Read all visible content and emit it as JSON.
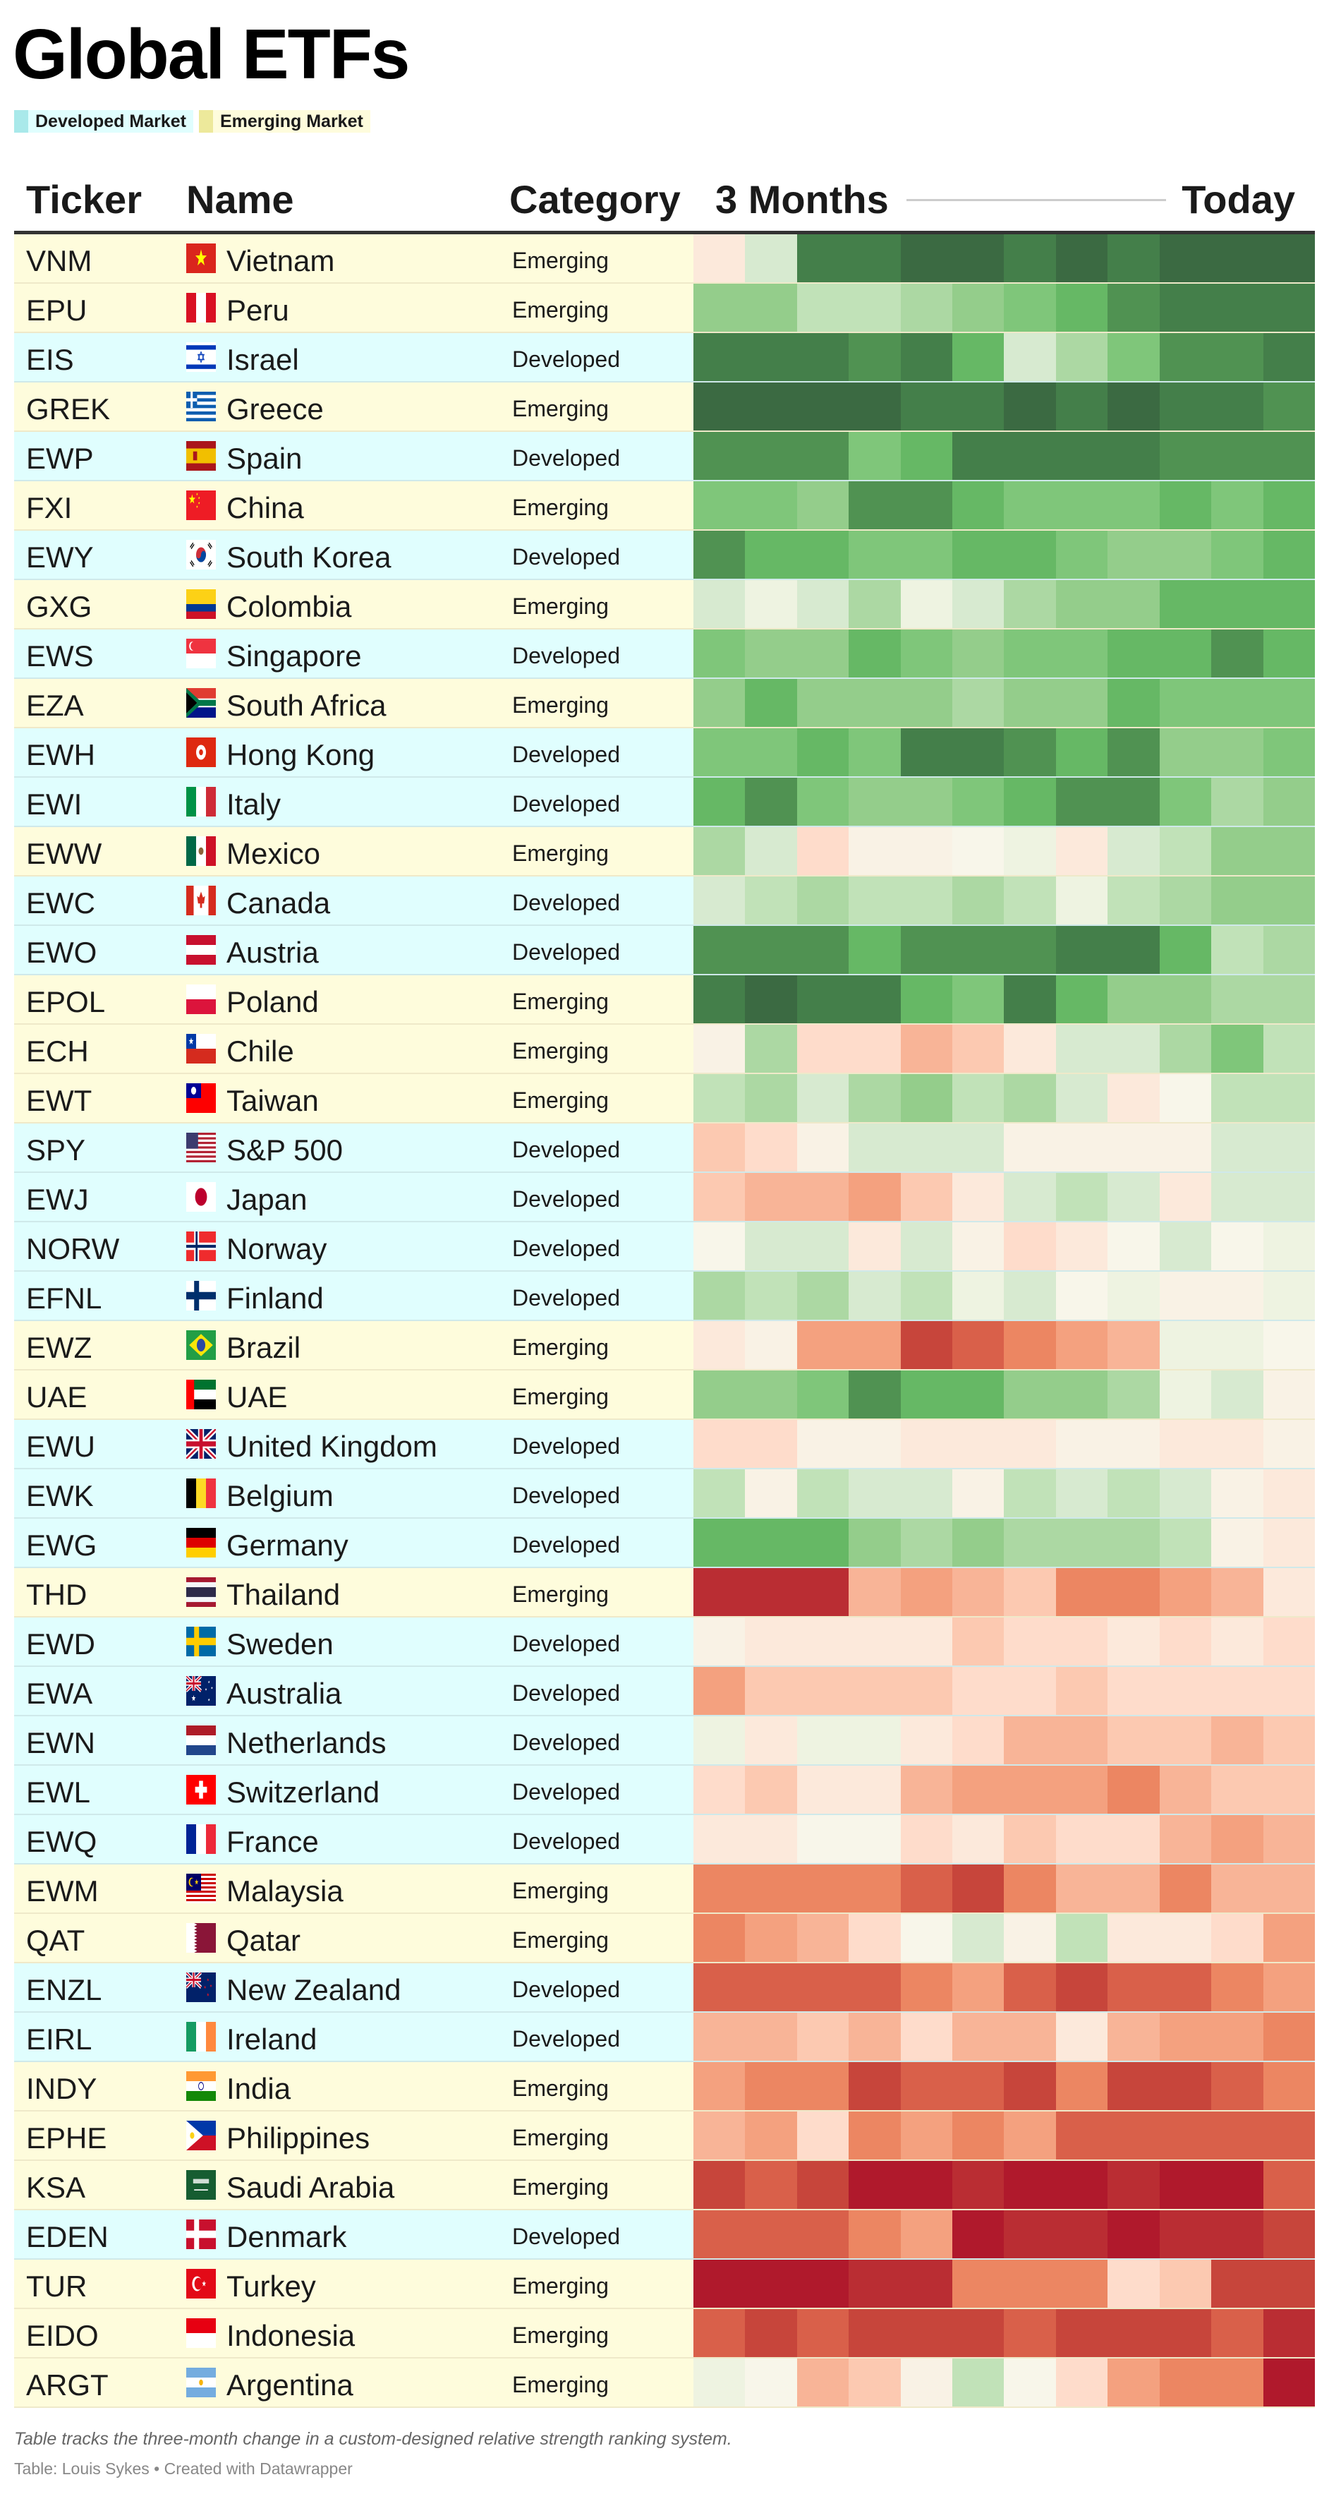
{
  "title": "Global ETFs",
  "legend": [
    {
      "label": "Developed Market",
      "color": "#a9e9ea"
    },
    {
      "label": "Emerging Market",
      "color": "#ede99b"
    }
  ],
  "headers": {
    "ticker": "Ticker",
    "name": "Name",
    "category": "Category",
    "start": "3 Months",
    "end": "Today"
  },
  "footer": {
    "note": "Table tracks the three-month change in a custom-designed relative strength ranking system.",
    "source": "Table: Louis Sykes • Created with Datawrapper"
  },
  "colors": {
    "developed_bg": "#e0fefe",
    "emerging_bg": "#fefcdc",
    "scale_neutral": "#f8f6ea",
    "scale_green": [
      "#eef3e1",
      "#d7ead0",
      "#c1e2b8",
      "#acd8a3",
      "#94cd8b",
      "#7fc67a",
      "#66b865",
      "#509252",
      "#447f4a",
      "#3b6a42"
    ],
    "scale_red": [
      "#f9f2e5",
      "#fce9db",
      "#fedccb",
      "#fcc9b1",
      "#f8b497",
      "#f4a17f",
      "#ec8662",
      "#d9604a",
      "#c7453b",
      "#ba2d33",
      "#b0192c"
    ]
  },
  "chart_data": {
    "type": "heatmap",
    "title": "Global ETFs",
    "x_label_start": "3 Months",
    "x_label_end": "Today",
    "periods": 12,
    "value_note": "relative strength level: positive = green (stronger), negative = red (weaker)",
    "rows": [
      {
        "ticker": "VNM",
        "name": "Vietnam",
        "flag": "vn",
        "category": "Emerging",
        "values": [
          -2,
          2,
          9,
          9,
          10,
          10,
          9,
          10,
          9,
          10,
          10,
          10
        ]
      },
      {
        "ticker": "EPU",
        "name": "Peru",
        "flag": "pe",
        "category": "Emerging",
        "values": [
          5,
          5,
          3,
          3,
          4,
          5,
          6,
          7,
          8,
          9,
          9,
          9
        ]
      },
      {
        "ticker": "EIS",
        "name": "Israel",
        "flag": "il",
        "category": "Developed",
        "values": [
          9,
          9,
          9,
          8,
          9,
          7,
          2,
          4,
          6,
          8,
          8,
          9
        ]
      },
      {
        "ticker": "GREK",
        "name": "Greece",
        "flag": "gr",
        "category": "Emerging",
        "values": [
          10,
          10,
          10,
          10,
          9,
          9,
          10,
          9,
          10,
          9,
          9,
          8
        ]
      },
      {
        "ticker": "EWP",
        "name": "Spain",
        "flag": "es",
        "category": "Developed",
        "values": [
          8,
          8,
          8,
          6,
          7,
          9,
          9,
          9,
          9,
          8,
          8,
          8
        ]
      },
      {
        "ticker": "FXI",
        "name": "China",
        "flag": "cn",
        "category": "Emerging",
        "values": [
          6,
          6,
          5,
          8,
          8,
          7,
          6,
          6,
          6,
          7,
          6,
          7
        ]
      },
      {
        "ticker": "EWY",
        "name": "South Korea",
        "flag": "kr",
        "category": "Developed",
        "values": [
          8,
          7,
          7,
          6,
          6,
          7,
          7,
          6,
          5,
          5,
          6,
          7
        ]
      },
      {
        "ticker": "GXG",
        "name": "Colombia",
        "flag": "co",
        "category": "Emerging",
        "values": [
          2,
          1,
          2,
          4,
          1,
          2,
          4,
          5,
          5,
          7,
          7,
          7
        ]
      },
      {
        "ticker": "EWS",
        "name": "Singapore",
        "flag": "sg",
        "category": "Developed",
        "values": [
          6,
          5,
          5,
          7,
          6,
          5,
          6,
          6,
          7,
          7,
          8,
          7
        ]
      },
      {
        "ticker": "EZA",
        "name": "South Africa",
        "flag": "za",
        "category": "Emerging",
        "values": [
          5,
          7,
          5,
          5,
          5,
          4,
          5,
          5,
          7,
          6,
          6,
          6
        ]
      },
      {
        "ticker": "EWH",
        "name": "Hong Kong",
        "flag": "hk",
        "category": "Developed",
        "values": [
          6,
          6,
          7,
          6,
          9,
          9,
          8,
          7,
          8,
          5,
          5,
          6
        ]
      },
      {
        "ticker": "EWI",
        "name": "Italy",
        "flag": "it",
        "category": "Developed",
        "values": [
          7,
          8,
          6,
          5,
          5,
          6,
          7,
          8,
          8,
          6,
          4,
          5
        ]
      },
      {
        "ticker": "EWW",
        "name": "Mexico",
        "flag": "mx",
        "category": "Emerging",
        "values": [
          4,
          2,
          -3,
          -1,
          -1,
          0,
          1,
          -2,
          2,
          3,
          5,
          5
        ]
      },
      {
        "ticker": "EWC",
        "name": "Canada",
        "flag": "ca",
        "category": "Developed",
        "values": [
          2,
          3,
          4,
          3,
          3,
          4,
          3,
          1,
          3,
          4,
          5,
          5
        ]
      },
      {
        "ticker": "EWO",
        "name": "Austria",
        "flag": "at",
        "category": "Developed",
        "values": [
          8,
          8,
          8,
          7,
          8,
          8,
          8,
          9,
          9,
          7,
          3,
          4
        ]
      },
      {
        "ticker": "EPOL",
        "name": "Poland",
        "flag": "pl",
        "category": "Emerging",
        "values": [
          9,
          10,
          9,
          9,
          7,
          6,
          9,
          7,
          5,
          5,
          4,
          4
        ]
      },
      {
        "ticker": "ECH",
        "name": "Chile",
        "flag": "cl",
        "category": "Emerging",
        "values": [
          -1,
          4,
          -3,
          -3,
          -5,
          -4,
          -2,
          2,
          2,
          4,
          6,
          3
        ]
      },
      {
        "ticker": "EWT",
        "name": "Taiwan",
        "flag": "tw",
        "category": "Emerging",
        "values": [
          3,
          4,
          2,
          4,
          5,
          3,
          4,
          2,
          -2,
          0,
          3,
          3
        ]
      },
      {
        "ticker": "SPY",
        "name": "S&P 500",
        "flag": "us",
        "category": "Developed",
        "values": [
          -4,
          -3,
          -1,
          2,
          2,
          2,
          -1,
          -1,
          -1,
          -1,
          2,
          2
        ]
      },
      {
        "ticker": "EWJ",
        "name": "Japan",
        "flag": "jp",
        "category": "Developed",
        "values": [
          -4,
          -5,
          -5,
          -6,
          -4,
          -2,
          2,
          3,
          2,
          -2,
          2,
          2
        ]
      },
      {
        "ticker": "NORW",
        "name": "Norway",
        "flag": "no",
        "category": "Developed",
        "values": [
          0,
          2,
          2,
          -2,
          2,
          -1,
          -3,
          -2,
          0,
          2,
          0,
          1
        ]
      },
      {
        "ticker": "EFNL",
        "name": "Finland",
        "flag": "fi",
        "category": "Developed",
        "values": [
          4,
          3,
          4,
          2,
          3,
          1,
          2,
          0,
          1,
          -1,
          -1,
          1
        ]
      },
      {
        "ticker": "EWZ",
        "name": "Brazil",
        "flag": "br",
        "category": "Emerging",
        "values": [
          -2,
          -1,
          -6,
          -6,
          -9,
          -8,
          -7,
          -6,
          -5,
          1,
          1,
          0
        ]
      },
      {
        "ticker": "UAE",
        "name": "UAE",
        "flag": "ae",
        "category": "Emerging",
        "values": [
          5,
          5,
          6,
          8,
          7,
          7,
          5,
          5,
          4,
          1,
          2,
          -1
        ]
      },
      {
        "ticker": "EWU",
        "name": "United Kingdom",
        "flag": "gb",
        "category": "Developed",
        "values": [
          -3,
          -3,
          -1,
          -1,
          -2,
          -2,
          -2,
          -1,
          -1,
          -2,
          -2,
          -1
        ]
      },
      {
        "ticker": "EWK",
        "name": "Belgium",
        "flag": "be",
        "category": "Developed",
        "values": [
          3,
          -1,
          3,
          2,
          2,
          -1,
          3,
          2,
          3,
          2,
          -1,
          -2
        ]
      },
      {
        "ticker": "EWG",
        "name": "Germany",
        "flag": "de",
        "category": "Developed",
        "values": [
          7,
          7,
          7,
          5,
          4,
          5,
          4,
          4,
          4,
          3,
          -1,
          -2
        ]
      },
      {
        "ticker": "THD",
        "name": "Thailand",
        "flag": "th",
        "category": "Emerging",
        "values": [
          -10,
          -10,
          -10,
          -5,
          -6,
          -5,
          -4,
          -7,
          -7,
          -6,
          -5,
          -2
        ]
      },
      {
        "ticker": "EWD",
        "name": "Sweden",
        "flag": "se",
        "category": "Developed",
        "values": [
          -1,
          -2,
          -2,
          -2,
          -2,
          -4,
          -3,
          -3,
          -2,
          -3,
          -2,
          -3
        ]
      },
      {
        "ticker": "EWA",
        "name": "Australia",
        "flag": "au",
        "category": "Developed",
        "values": [
          -6,
          -4,
          -4,
          -4,
          -4,
          -3,
          -3,
          -4,
          -3,
          -3,
          -3,
          -3
        ]
      },
      {
        "ticker": "EWN",
        "name": "Netherlands",
        "flag": "nl",
        "category": "Developed",
        "values": [
          1,
          -2,
          1,
          1,
          -2,
          -3,
          -5,
          -5,
          -4,
          -4,
          -5,
          -4
        ]
      },
      {
        "ticker": "EWL",
        "name": "Switzerland",
        "flag": "ch",
        "category": "Developed",
        "values": [
          -3,
          -4,
          -2,
          -2,
          -5,
          -6,
          -6,
          -6,
          -7,
          -5,
          -4,
          -4
        ]
      },
      {
        "ticker": "EWQ",
        "name": "France",
        "flag": "fr",
        "category": "Developed",
        "values": [
          -2,
          -2,
          0,
          0,
          -3,
          -2,
          -4,
          -3,
          -3,
          -5,
          -6,
          -5
        ]
      },
      {
        "ticker": "EWM",
        "name": "Malaysia",
        "flag": "my",
        "category": "Emerging",
        "values": [
          -7,
          -7,
          -7,
          -7,
          -8,
          -9,
          -7,
          -5,
          -5,
          -7,
          -5,
          -5
        ]
      },
      {
        "ticker": "QAT",
        "name": "Qatar",
        "flag": "qa",
        "category": "Emerging",
        "values": [
          -7,
          -6,
          -5,
          -3,
          0,
          2,
          -1,
          3,
          -2,
          -2,
          -3,
          -6
        ]
      },
      {
        "ticker": "ENZL",
        "name": "New Zealand",
        "flag": "nz",
        "category": "Developed",
        "values": [
          -8,
          -8,
          -8,
          -8,
          -7,
          -6,
          -8,
          -9,
          -8,
          -8,
          -7,
          -6
        ]
      },
      {
        "ticker": "EIRL",
        "name": "Ireland",
        "flag": "ie",
        "category": "Developed",
        "values": [
          -5,
          -5,
          -4,
          -5,
          -3,
          -5,
          -5,
          -2,
          -5,
          -6,
          -6,
          -7
        ]
      },
      {
        "ticker": "INDY",
        "name": "India",
        "flag": "in",
        "category": "Emerging",
        "values": [
          -6,
          -7,
          -7,
          -9,
          -8,
          -8,
          -9,
          -7,
          -9,
          -9,
          -8,
          -7
        ]
      },
      {
        "ticker": "EPHE",
        "name": "Philippines",
        "flag": "ph",
        "category": "Emerging",
        "values": [
          -5,
          -6,
          -3,
          -7,
          -6,
          -7,
          -6,
          -8,
          -8,
          -8,
          -8,
          -8
        ]
      },
      {
        "ticker": "KSA",
        "name": "Saudi Arabia",
        "flag": "sa",
        "category": "Emerging",
        "values": [
          -9,
          -8,
          -9,
          -11,
          -11,
          -10,
          -11,
          -11,
          -10,
          -11,
          -11,
          -8
        ]
      },
      {
        "ticker": "EDEN",
        "name": "Denmark",
        "flag": "dk",
        "category": "Developed",
        "values": [
          -8,
          -8,
          -8,
          -7,
          -6,
          -11,
          -10,
          -10,
          -11,
          -10,
          -10,
          -9
        ]
      },
      {
        "ticker": "TUR",
        "name": "Turkey",
        "flag": "tr",
        "category": "Emerging",
        "values": [
          -11,
          -11,
          -11,
          -10,
          -10,
          -7,
          -7,
          -7,
          -3,
          -4,
          -9,
          -9
        ]
      },
      {
        "ticker": "EIDO",
        "name": "Indonesia",
        "flag": "id",
        "category": "Emerging",
        "values": [
          -8,
          -9,
          -8,
          -9,
          -9,
          -9,
          -8,
          -9,
          -9,
          -9,
          -8,
          -10
        ]
      },
      {
        "ticker": "ARGT",
        "name": "Argentina",
        "flag": "ar",
        "category": "Emerging",
        "values": [
          1,
          0,
          -5,
          -4,
          -1,
          3,
          0,
          -3,
          -6,
          -7,
          -7,
          -11
        ]
      }
    ]
  }
}
